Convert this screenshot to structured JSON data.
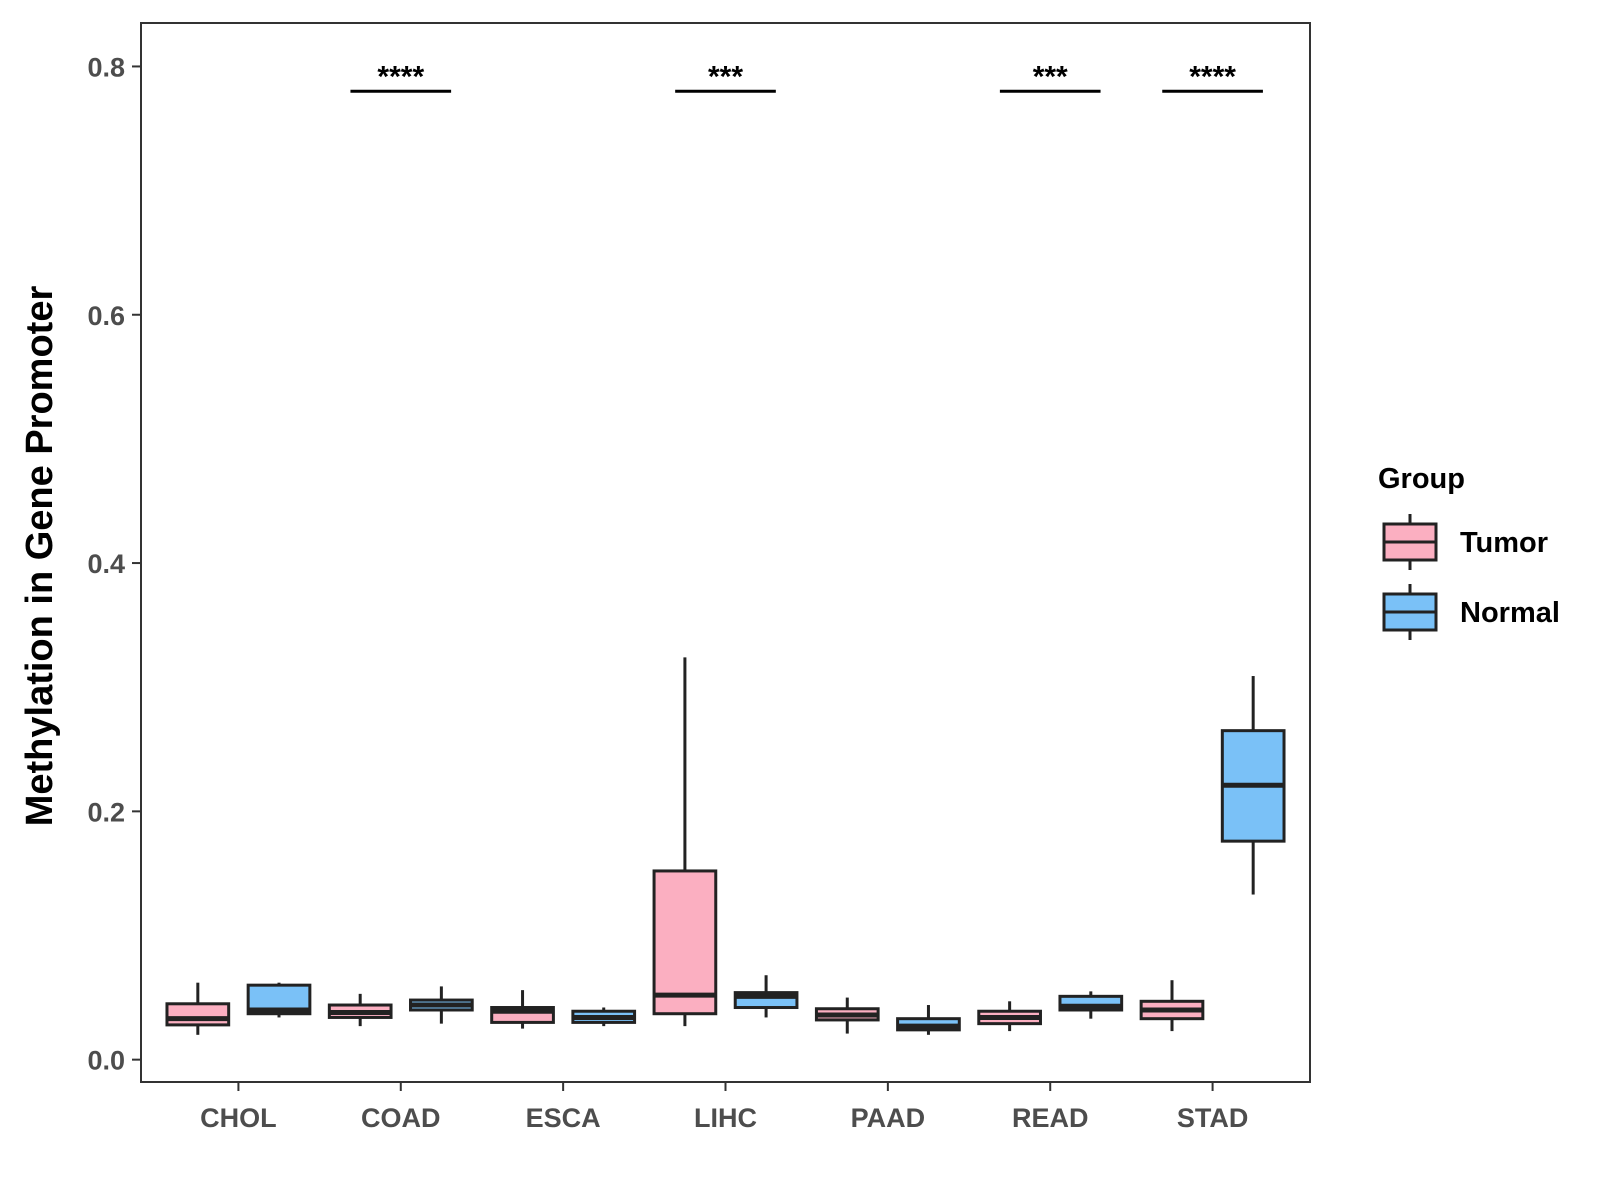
{
  "chart_data": {
    "type": "boxplot",
    "title": "",
    "xlabel": "",
    "ylabel": "Methylation in Gene Promoter",
    "ylim": [
      -0.018,
      0.835
    ],
    "yticks": [
      "0.0",
      "0.2",
      "0.4",
      "0.6",
      "0.8"
    ],
    "ytick_values": [
      0.0,
      0.2,
      0.4,
      0.6,
      0.8
    ],
    "categories": [
      "CHOL",
      "COAD",
      "ESCA",
      "LIHC",
      "PAAD",
      "READ",
      "STAD"
    ],
    "legend": {
      "title": "Group",
      "position": "right",
      "items": [
        {
          "name": "Tumor",
          "color": "#FBAFC1"
        },
        {
          "name": "Normal",
          "color": "#7AC1F7"
        }
      ]
    },
    "series": [
      {
        "name": "Tumor",
        "color": "#FBAFC1",
        "boxes": [
          {
            "category": "CHOL",
            "whisker_low": 0.02,
            "q1": 0.028,
            "median": 0.033,
            "q3": 0.045,
            "whisker_high": 0.062
          },
          {
            "category": "COAD",
            "whisker_low": 0.027,
            "q1": 0.034,
            "median": 0.038,
            "q3": 0.044,
            "whisker_high": 0.053
          },
          {
            "category": "ESCA",
            "whisker_low": 0.025,
            "q1": 0.03,
            "median": 0.039,
            "q3": 0.042,
            "whisker_high": 0.056
          },
          {
            "category": "LIHC",
            "whisker_low": 0.027,
            "q1": 0.037,
            "median": 0.052,
            "q3": 0.152,
            "whisker_high": 0.324
          },
          {
            "category": "PAAD",
            "whisker_low": 0.021,
            "q1": 0.032,
            "median": 0.036,
            "q3": 0.041,
            "whisker_high": 0.05
          },
          {
            "category": "READ",
            "whisker_low": 0.023,
            "q1": 0.029,
            "median": 0.034,
            "q3": 0.039,
            "whisker_high": 0.047
          },
          {
            "category": "STAD",
            "whisker_low": 0.023,
            "q1": 0.033,
            "median": 0.04,
            "q3": 0.047,
            "whisker_high": 0.064
          }
        ]
      },
      {
        "name": "Normal",
        "color": "#7AC1F7",
        "boxes": [
          {
            "category": "CHOL",
            "whisker_low": 0.034,
            "q1": 0.037,
            "median": 0.04,
            "q3": 0.06,
            "whisker_high": 0.062
          },
          {
            "category": "COAD",
            "whisker_low": 0.029,
            "q1": 0.04,
            "median": 0.044,
            "q3": 0.048,
            "whisker_high": 0.059
          },
          {
            "category": "ESCA",
            "whisker_low": 0.027,
            "q1": 0.03,
            "median": 0.034,
            "q3": 0.039,
            "whisker_high": 0.042
          },
          {
            "category": "LIHC",
            "whisker_low": 0.034,
            "q1": 0.042,
            "median": 0.051,
            "q3": 0.054,
            "whisker_high": 0.068
          },
          {
            "category": "PAAD",
            "whisker_low": 0.02,
            "q1": 0.024,
            "median": 0.027,
            "q3": 0.033,
            "whisker_high": 0.044
          },
          {
            "category": "READ",
            "whisker_low": 0.033,
            "q1": 0.04,
            "median": 0.043,
            "q3": 0.051,
            "whisker_high": 0.055
          },
          {
            "category": "STAD",
            "whisker_low": 0.133,
            "q1": 0.176,
            "median": 0.221,
            "q3": 0.265,
            "whisker_high": 0.309
          }
        ]
      }
    ],
    "annotations": [
      {
        "category": "COAD",
        "label": "****",
        "y": 0.78
      },
      {
        "category": "LIHC",
        "label": "***",
        "y": 0.78
      },
      {
        "category": "READ",
        "label": "***",
        "y": 0.78
      },
      {
        "category": "STAD",
        "label": "****",
        "y": 0.78
      }
    ]
  }
}
